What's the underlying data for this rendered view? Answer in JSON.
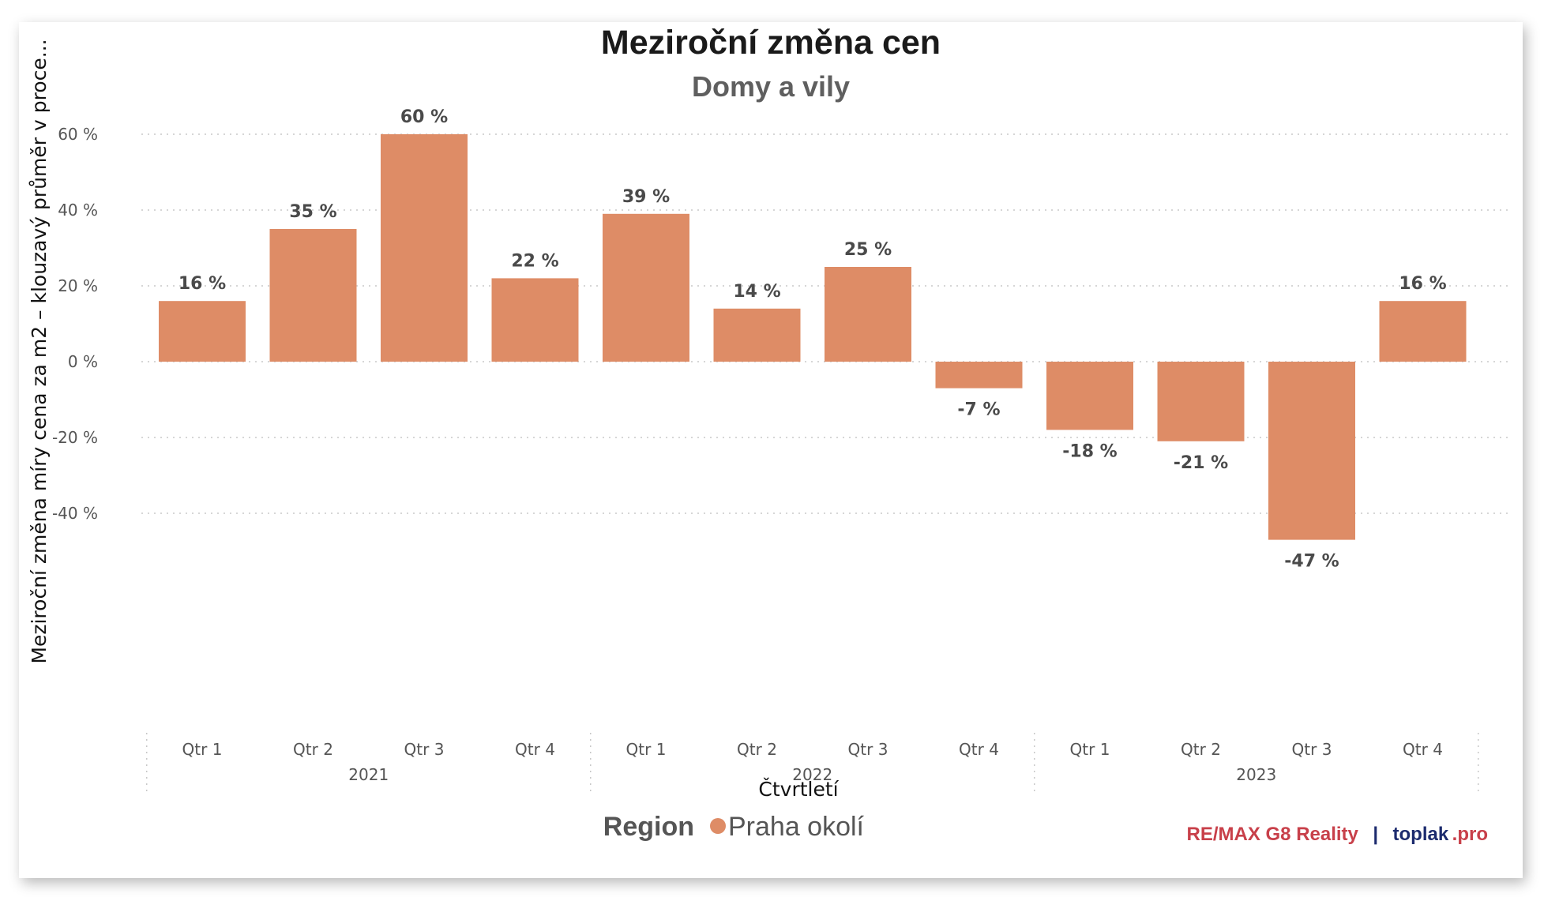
{
  "colors": {
    "bar": "#de8c66",
    "grid": "#c8c8c8",
    "brand_red": "#c8404a",
    "brand_navy": "#1c2b6e"
  },
  "chart_data": {
    "type": "bar",
    "title": "Meziroční změna cen",
    "subtitle": "Domy a vily",
    "ylabel": "Meziroční změna míry cena za m2 – klouzavý průměr v proce...",
    "xlabel": "Čtvrtletí",
    "ylim": [
      -50,
      70
    ],
    "yticks": [
      60,
      40,
      20,
      0,
      -20,
      -40
    ],
    "ytick_labels": [
      "60 %",
      "40 %",
      "20 %",
      "0 %",
      "-20 %",
      "-40 %"
    ],
    "grid": true,
    "categories": [
      "Qtr 1",
      "Qtr 2",
      "Qtr 3",
      "Qtr 4",
      "Qtr 1",
      "Qtr 2",
      "Qtr 3",
      "Qtr 4",
      "Qtr 1",
      "Qtr 2",
      "Qtr 3",
      "Qtr 4"
    ],
    "years": [
      "2021",
      "2022",
      "2023"
    ],
    "series": [
      {
        "name": "Praha okolí",
        "values": [
          16,
          35,
          60,
          22,
          39,
          14,
          25,
          -7,
          -18,
          -21,
          -47,
          16
        ],
        "labels": [
          "16 %",
          "35 %",
          "60 %",
          "22 %",
          "39 %",
          "14 %",
          "25 %",
          "-7 %",
          "-18 %",
          "-21 %",
          "-47 %",
          "16 %"
        ]
      }
    ],
    "legend_title": "Region",
    "legend_position": "bottom"
  },
  "branding": {
    "part1": "RE/MAX G8 Reality",
    "separator": "|",
    "part2": "toplak",
    "part3": ".pro"
  }
}
